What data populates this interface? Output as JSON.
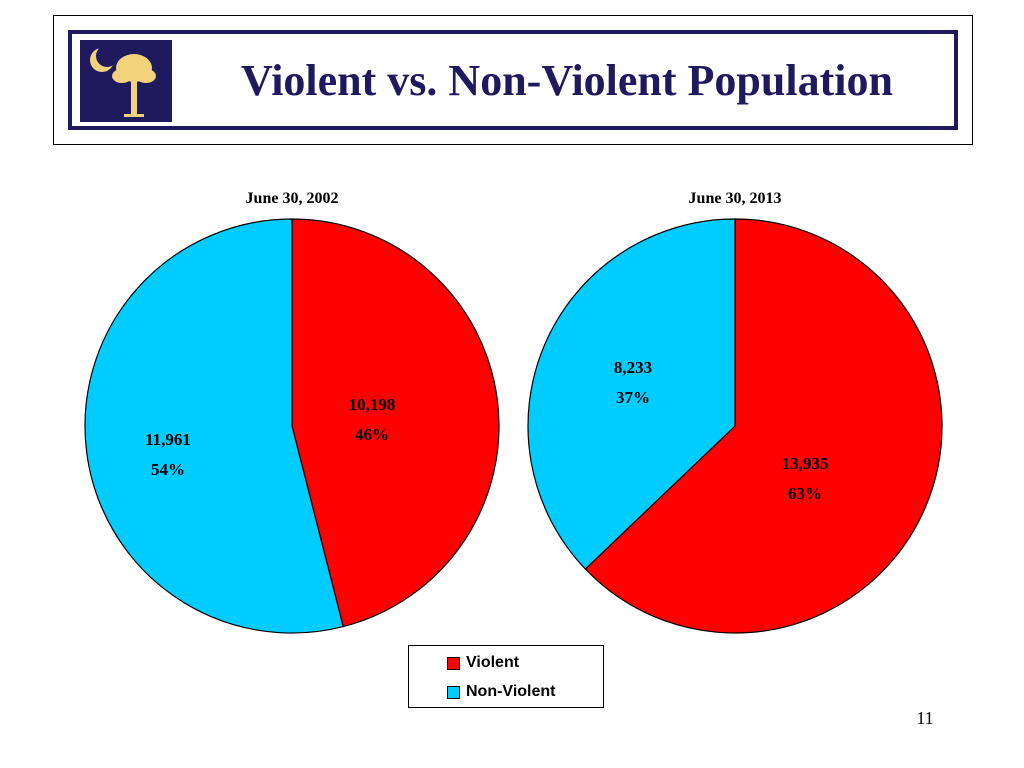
{
  "slide": {
    "title": "Violent vs. Non-Violent Population",
    "page_number": "11"
  },
  "chart_data": [
    {
      "type": "pie",
      "title": "June 30, 2002",
      "categories": [
        "Violent",
        "Non-Violent"
      ],
      "values": [
        10198,
        11961
      ],
      "value_labels": [
        "10,198",
        "11,961"
      ],
      "percent_labels": [
        "46%",
        "54%"
      ],
      "colors": [
        "#ff0000",
        "#00ccff"
      ],
      "legend": "bottom-center"
    },
    {
      "type": "pie",
      "title": "June 30, 2013",
      "categories": [
        "Violent",
        "Non-Violent"
      ],
      "values": [
        13935,
        8233
      ],
      "value_labels": [
        "13,935",
        "8,233"
      ],
      "percent_labels": [
        "63%",
        "37%"
      ],
      "colors": [
        "#ff0000",
        "#00ccff"
      ],
      "legend": "bottom-center"
    }
  ],
  "legend": {
    "items": [
      {
        "label": "Violent",
        "color": "#ff0000"
      },
      {
        "label": "Non-Violent",
        "color": "#00ccff"
      }
    ]
  },
  "logo": {
    "icon": "palmetto-crescent-icon",
    "background": "#1f1a5e",
    "foreground": "#f2d27a"
  }
}
